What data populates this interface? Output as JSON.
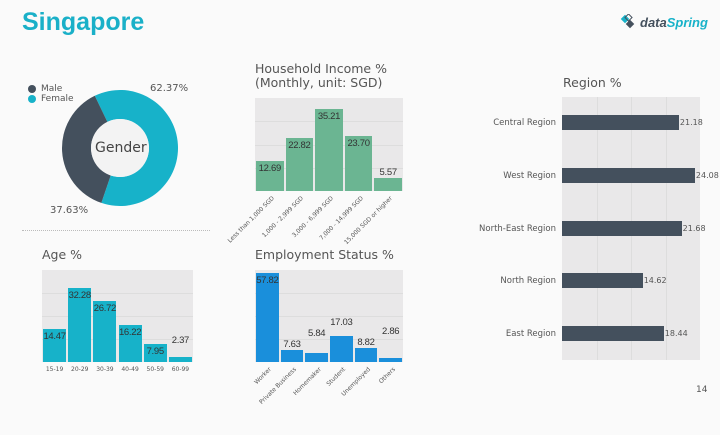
{
  "page": {
    "title": "Singapore",
    "logo_text_1": "data",
    "logo_text_2": "Spring",
    "page_number": "14"
  },
  "colors": {
    "title": "#1ab0c8",
    "male": "#44505d",
    "female": "#17b2c9",
    "income": "#6bb592",
    "age": "#17b2c9",
    "employment": "#1a8fdb",
    "region": "#44505d"
  },
  "chart_data": [
    {
      "type": "pie",
      "title": "Gender",
      "legend": [
        "Male",
        "Female"
      ],
      "legend_position": "top-left",
      "values": [
        37.63,
        62.37
      ],
      "labels": [
        "37.63%",
        "62.37%"
      ],
      "donut": true
    },
    {
      "type": "bar",
      "title": "Household Income %",
      "subtitle": "(Monthly, unit: SGD)",
      "categories": [
        "Less than 1,000 SGD",
        "1,000 - 2,999 SGD",
        "3,000 - 6,999 SGD",
        "7,000 - 14,999 SGD",
        "15,000 SGD or higher"
      ],
      "values": [
        12.69,
        22.82,
        35.21,
        23.7,
        5.57
      ],
      "labels": [
        "12.69",
        "22.82",
        "35.21",
        "23.70",
        "5.57"
      ],
      "ylim": [
        0,
        40
      ],
      "grid": true
    },
    {
      "type": "bar",
      "title": "Age %",
      "categories": [
        "15-19",
        "20-29",
        "30-39",
        "40-49",
        "50-59",
        "60-99"
      ],
      "values": [
        14.47,
        32.28,
        26.72,
        16.22,
        7.95,
        2.37
      ],
      "labels": [
        "14.47",
        "32.28",
        "26.72",
        "16.22",
        "7.95",
        "2.37"
      ],
      "ylim": [
        0,
        40
      ],
      "grid": true
    },
    {
      "type": "bar",
      "title": "Employment Status %",
      "categories": [
        "Worker",
        "Private Business",
        "Homemaker",
        "Student",
        "Unemployed",
        "Others"
      ],
      "values": [
        57.82,
        7.63,
        5.84,
        17.03,
        8.82,
        2.86
      ],
      "labels": [
        "57.82",
        "7.63",
        "5.84",
        "17.03",
        "8.82",
        "2.86"
      ],
      "ylim": [
        0,
        60
      ],
      "grid": true
    },
    {
      "type": "bar",
      "orientation": "horizontal",
      "title": "Region %",
      "categories": [
        "Central Region",
        "West Region",
        "North-East Region",
        "North Region",
        "East Region"
      ],
      "values": [
        21.18,
        24.08,
        21.68,
        14.62,
        18.44
      ],
      "labels": [
        "21.18",
        "24.08",
        "21.68",
        "14.62",
        "18.44"
      ],
      "xlim": [
        0,
        25
      ],
      "grid": true
    }
  ]
}
